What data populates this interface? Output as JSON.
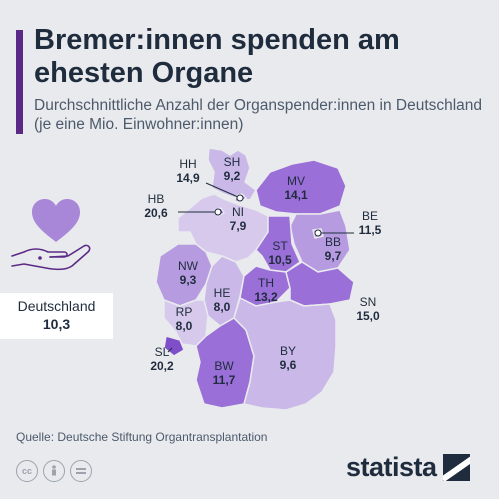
{
  "header": {
    "title": "Bremer:innen spenden am ehesten Organe",
    "subtitle": "Durchschnittliche Anzahl der Organspender:innen in Deutschland (je eine Mio. Einwohner:innen)"
  },
  "national": {
    "label": "Deutschland",
    "value": "10,3"
  },
  "footer": {
    "source": "Quelle: Deutsche Stiftung Organtransplantation",
    "brand": "statista"
  },
  "icons": [
    "heart-icon",
    "hand-icon",
    "cc-icon",
    "by-icon",
    "nd-icon",
    "statista-logo-icon"
  ],
  "colors": {
    "accent": "#5b2a86",
    "low": "#d6c9ec",
    "mid": "#b79be0",
    "high": "#9a6fd8",
    "top": "#7e4fc9"
  },
  "chart_data": {
    "type": "choropleth",
    "regions": [
      {
        "code": "SH",
        "value": "9,2"
      },
      {
        "code": "HH",
        "value": "14,9"
      },
      {
        "code": "MV",
        "value": "14,1"
      },
      {
        "code": "HB",
        "value": "20,6"
      },
      {
        "code": "NI",
        "value": "7,9"
      },
      {
        "code": "BE",
        "value": "11,5"
      },
      {
        "code": "ST",
        "value": "10,5"
      },
      {
        "code": "BB",
        "value": "9,7"
      },
      {
        "code": "NW",
        "value": "9,3"
      },
      {
        "code": "TH",
        "value": "13,2"
      },
      {
        "code": "SN",
        "value": "15,0"
      },
      {
        "code": "HE",
        "value": "8,0"
      },
      {
        "code": "RP",
        "value": "8,0"
      },
      {
        "code": "SL",
        "value": "20,2"
      },
      {
        "code": "BY",
        "value": "9,6"
      },
      {
        "code": "BW",
        "value": "11,7"
      }
    ]
  }
}
